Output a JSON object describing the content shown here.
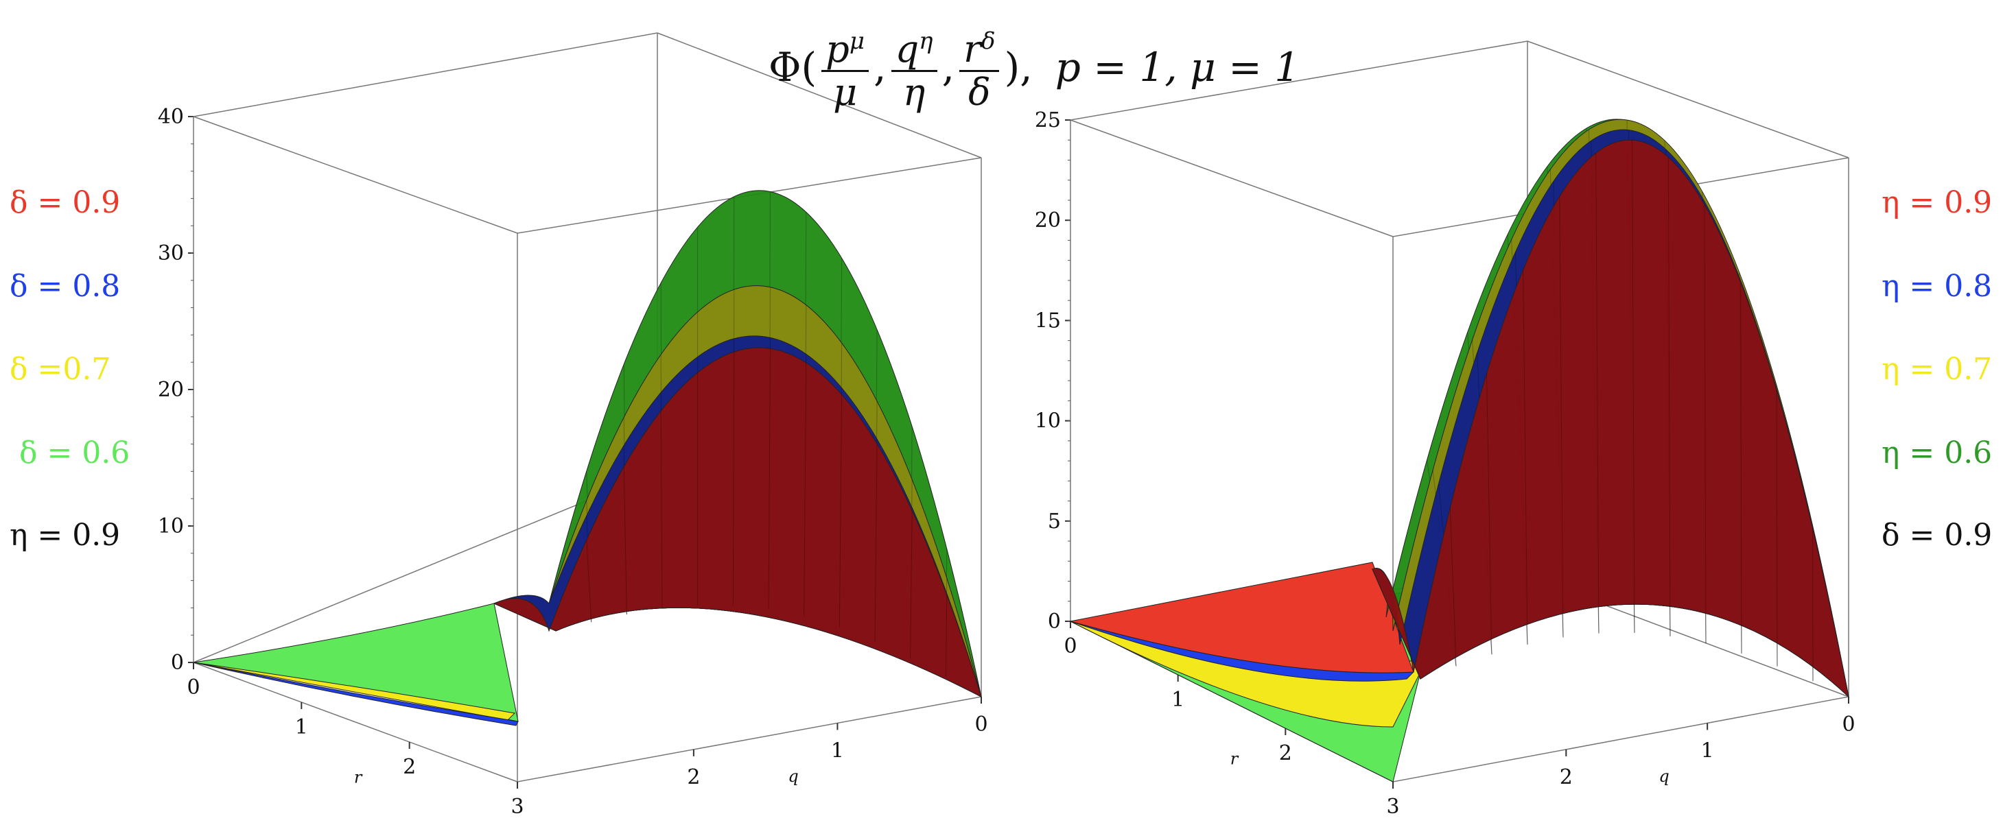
{
  "title": {
    "phi": "Φ(",
    "f1_num": "p",
    "f1_sup": "μ",
    "f1_den": "μ",
    "comma1": ",",
    "f2_num": "q",
    "f2_sup": "η",
    "f2_den": "η",
    "comma2": ",",
    "f3_num": "r",
    "f3_sup": "δ",
    "f3_den": "δ",
    "close": "),",
    "params": "p = 1, μ = 1"
  },
  "left_legend": [
    {
      "text": "δ = 0.9",
      "color": "#e8392a"
    },
    {
      "text": "δ = 0.8",
      "color": "#1f3fe8"
    },
    {
      "text": "δ =0.7",
      "color": "#f2e81c"
    },
    {
      "text": "δ = 0.6",
      "color": "#5ee85a"
    },
    {
      "text": "η = 0.9",
      "color": "#111111"
    }
  ],
  "right_legend": [
    {
      "text": "η = 0.9",
      "color": "#e8392a"
    },
    {
      "text": "η = 0.8",
      "color": "#1f3fe8"
    },
    {
      "text": "η = 0.7",
      "color": "#f2e81c"
    },
    {
      "text": "η = 0.6",
      "color": "#2f9a28"
    },
    {
      "text": "δ = 0.9",
      "color": "#111111"
    }
  ],
  "chart_data": [
    {
      "type": "surface",
      "zlim": [
        0,
        40
      ],
      "z_ticks": [
        "0",
        "10",
        "20",
        "30",
        "40"
      ],
      "r_ticks": [
        "0",
        "1",
        "2",
        "3"
      ],
      "q_ticks": [
        "2",
        "1",
        "0"
      ],
      "xlabel": "r",
      "ylabel": "q",
      "series": [
        {
          "name": "δ = 0.6",
          "color": "#1f8a12",
          "peak": 34.5
        },
        {
          "name": "δ =0.7",
          "color": "#8a8a10",
          "peak": 27.5
        },
        {
          "name": "δ = 0.8",
          "color": "#10208a",
          "peak": 23.8
        },
        {
          "name": "δ = 0.9",
          "color": "#8a1010",
          "peak": 23.0
        }
      ]
    },
    {
      "type": "surface",
      "zlim": [
        0,
        25
      ],
      "z_ticks": [
        "0",
        "5",
        "10",
        "15",
        "20",
        "25"
      ],
      "r_ticks": [
        "0",
        "1",
        "2",
        "3"
      ],
      "q_ticks": [
        "2",
        "1",
        "0"
      ],
      "xlabel": "r",
      "ylabel": "q",
      "series": [
        {
          "name": "η = 0.6",
          "color": "#1f8a12",
          "peak": 25.0
        },
        {
          "name": "η = 0.7",
          "color": "#8a8a10",
          "peak": 25.0
        },
        {
          "name": "η = 0.8",
          "color": "#10208a",
          "peak": 24.5
        },
        {
          "name": "η = 0.9",
          "color": "#8a1010",
          "peak": 24.0
        }
      ]
    }
  ]
}
